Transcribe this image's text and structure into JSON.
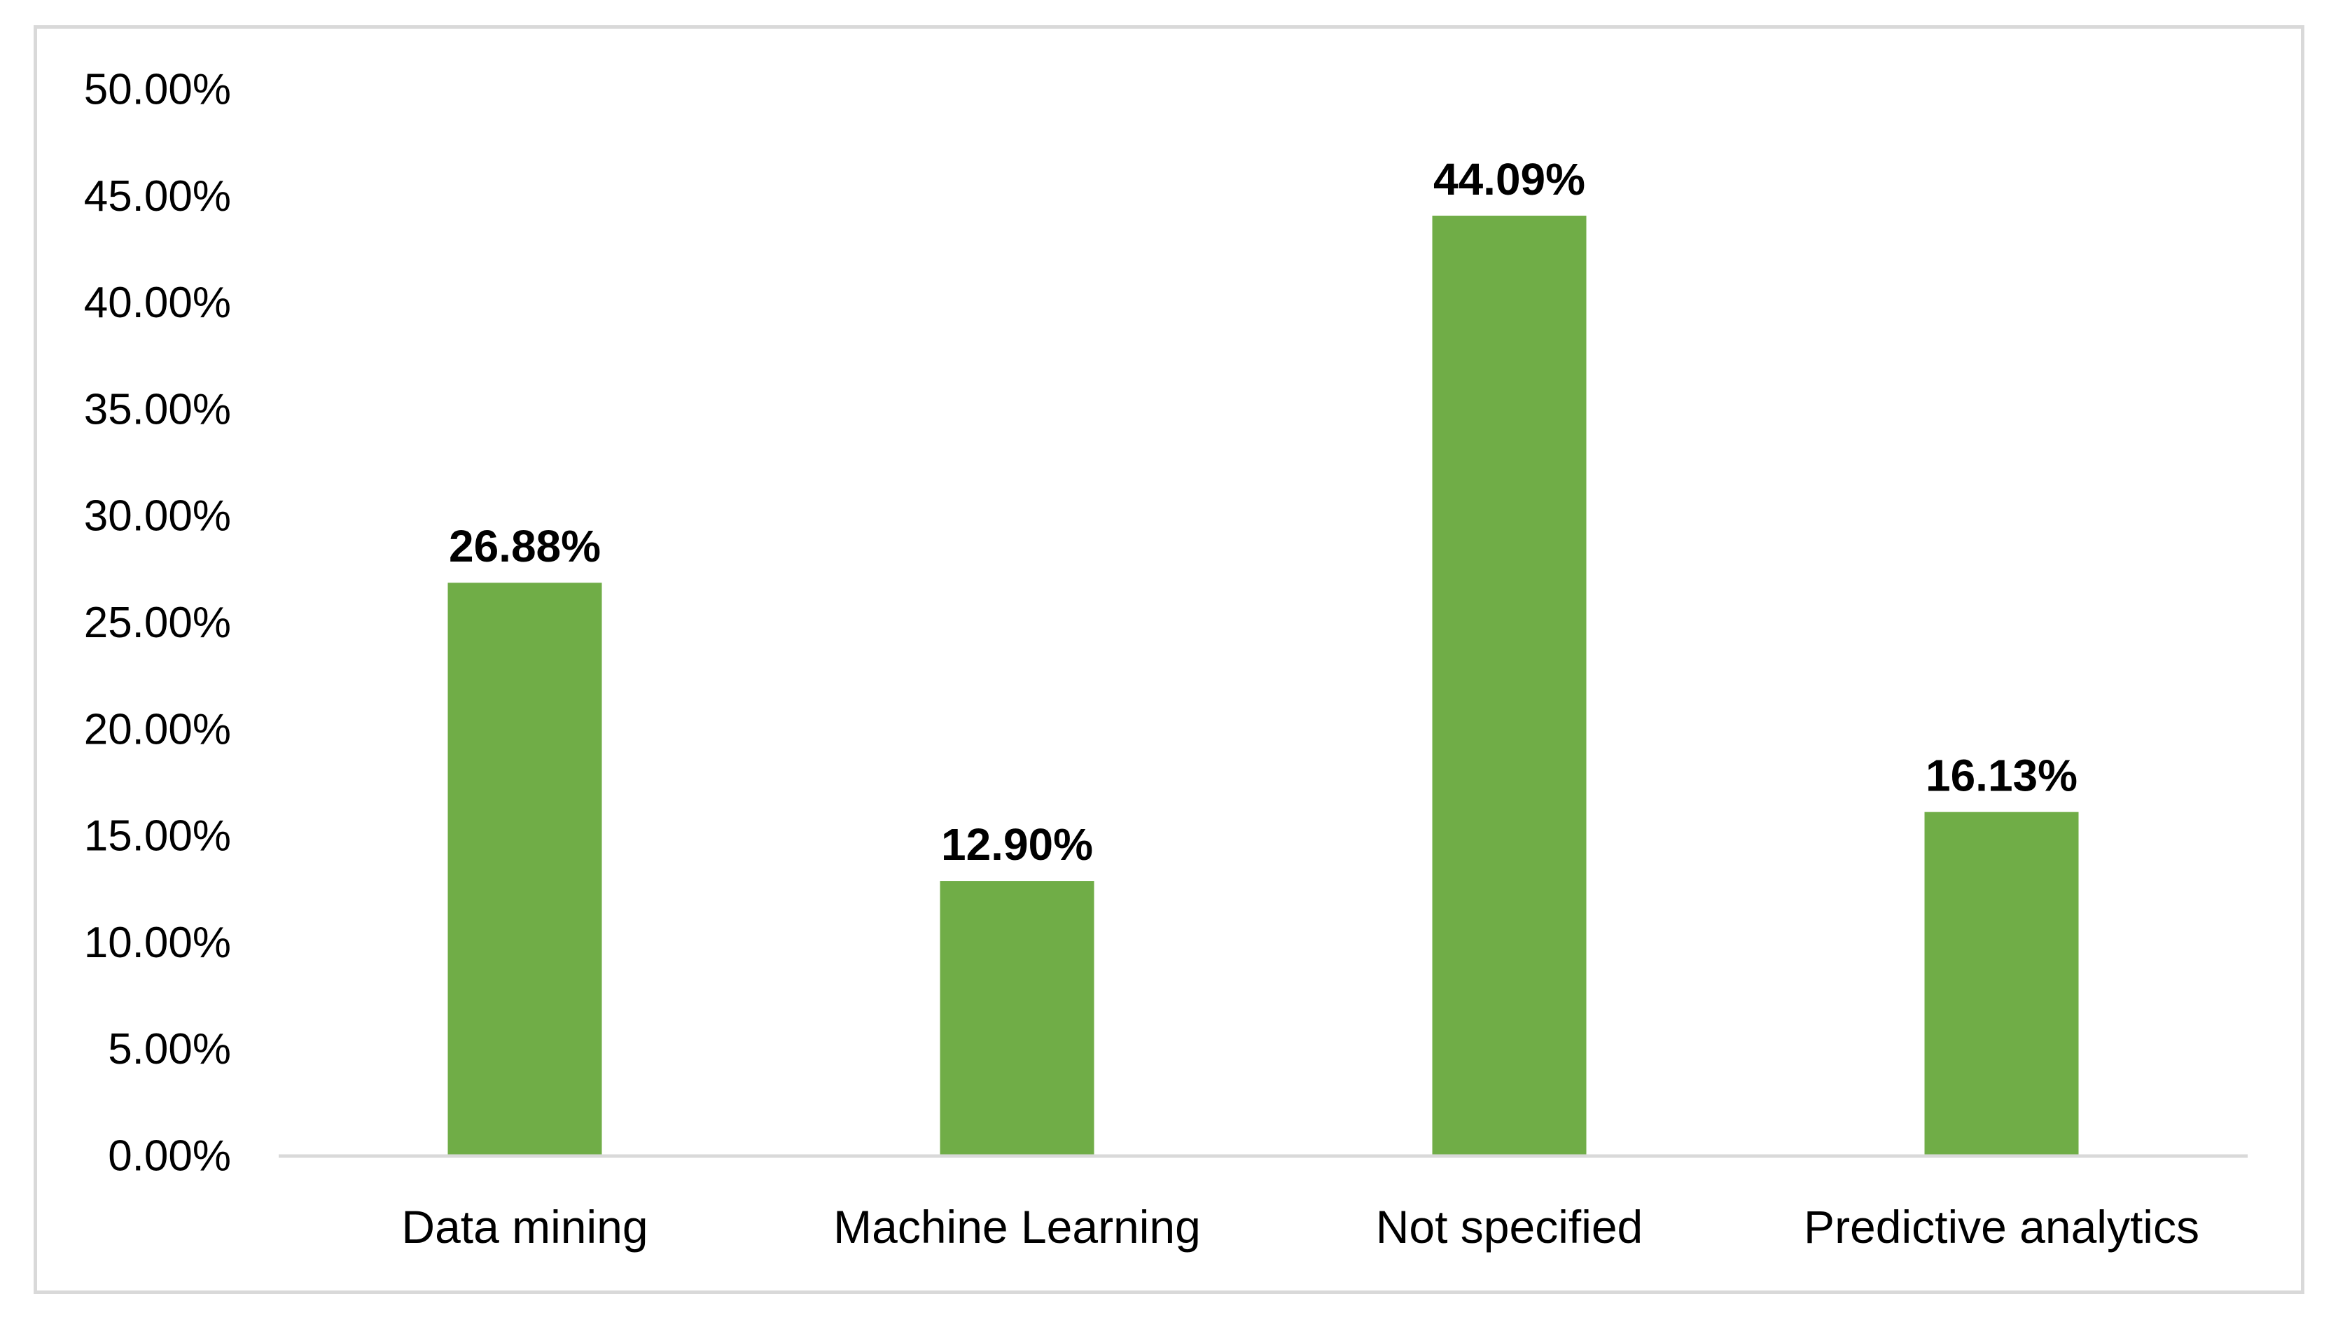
{
  "chart_data": {
    "type": "bar",
    "title": "",
    "xlabel": "",
    "ylabel": "",
    "categories": [
      "Data mining",
      "Machine Learning",
      "Not specified",
      "Predictive analytics"
    ],
    "values": [
      26.88,
      12.9,
      44.09,
      16.13
    ],
    "data_labels": [
      "26.88%",
      "12.90%",
      "44.09%",
      "16.13%"
    ],
    "ylim": [
      0,
      50
    ],
    "y_ticks": [
      0,
      5,
      10,
      15,
      20,
      25,
      30,
      35,
      40,
      45,
      50
    ],
    "y_tick_labels": [
      "0.00%",
      "5.00%",
      "10.00%",
      "15.00%",
      "20.00%",
      "25.00%",
      "30.00%",
      "35.00%",
      "40.00%",
      "45.00%",
      "50.00%"
    ],
    "grid": false,
    "legend": "none",
    "bar_color": "#70ad47",
    "axis_color": "#d9d9d9",
    "frame_color": "#d9d9d9"
  }
}
